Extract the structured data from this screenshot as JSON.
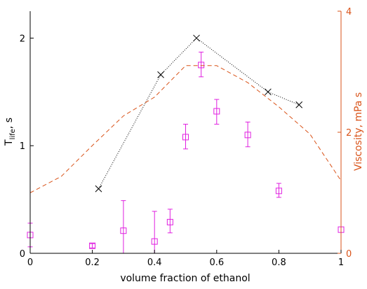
{
  "chart_data": {
    "type": "scatter",
    "xlabel": "volume fraction of ethanol",
    "ylabel_left": {
      "prefix": "T",
      "subscript": "life",
      "suffix": ", s"
    },
    "ylabel_right": "Viscosity, mPa s",
    "xlim": [
      0,
      1
    ],
    "ylim_left": [
      0,
      2.25
    ],
    "ylim_right": [
      0,
      4
    ],
    "x_ticks": [
      "0",
      "0.2",
      "0.4",
      "0.6",
      "0.8",
      "1"
    ],
    "y_left_ticks": [
      "0",
      "1",
      "2"
    ],
    "y_right_ticks": [
      "0",
      "2",
      "4"
    ],
    "grid": false,
    "colors": {
      "axes": "#000000",
      "right_axis": "#d95319",
      "tlife_line": "#000000",
      "measurements": "#e020e0",
      "viscosity": "#d95319"
    },
    "series": [
      {
        "kind": "line-with-x-markers",
        "marker": "x",
        "axis": "left",
        "points": [
          {
            "x": 0.22,
            "y": 0.6
          },
          {
            "x": 0.42,
            "y": 1.66
          },
          {
            "x": 0.535,
            "y": 2.0
          },
          {
            "x": 0.765,
            "y": 1.5
          },
          {
            "x": 0.865,
            "y": 1.38
          }
        ]
      },
      {
        "kind": "errorbar-square-markers",
        "marker": "square",
        "axis": "left",
        "points": [
          {
            "x": 0.0,
            "y": 0.17,
            "lo": 0.06,
            "hi": 0.28
          },
          {
            "x": 0.2,
            "y": 0.07,
            "lo": 0.05,
            "hi": 0.09
          },
          {
            "x": 0.3,
            "y": 0.21,
            "lo": 0.0,
            "hi": 0.49
          },
          {
            "x": 0.4,
            "y": 0.11,
            "lo": 0.0,
            "hi": 0.39
          },
          {
            "x": 0.45,
            "y": 0.29,
            "lo": 0.19,
            "hi": 0.41
          },
          {
            "x": 0.5,
            "y": 1.08,
            "lo": 0.97,
            "hi": 1.2
          },
          {
            "x": 0.55,
            "y": 1.75,
            "lo": 1.64,
            "hi": 1.87
          },
          {
            "x": 0.6,
            "y": 1.32,
            "lo": 1.2,
            "hi": 1.43
          },
          {
            "x": 0.7,
            "y": 1.1,
            "lo": 0.99,
            "hi": 1.22
          },
          {
            "x": 0.8,
            "y": 0.58,
            "lo": 0.52,
            "hi": 0.65
          },
          {
            "x": 1.0,
            "y": 0.22,
            "lo": 0.22,
            "hi": 0.22
          }
        ]
      },
      {
        "kind": "dashed-line",
        "axis": "right",
        "points": [
          {
            "x": 0.0,
            "y": 1.0
          },
          {
            "x": 0.1,
            "y": 1.27
          },
          {
            "x": 0.2,
            "y": 1.78
          },
          {
            "x": 0.3,
            "y": 2.27
          },
          {
            "x": 0.4,
            "y": 2.58
          },
          {
            "x": 0.5,
            "y": 3.1
          },
          {
            "x": 0.6,
            "y": 3.1
          },
          {
            "x": 0.7,
            "y": 2.82
          },
          {
            "x": 0.8,
            "y": 2.42
          },
          {
            "x": 0.9,
            "y": 1.97
          },
          {
            "x": 1.0,
            "y": 1.2
          }
        ]
      }
    ]
  }
}
